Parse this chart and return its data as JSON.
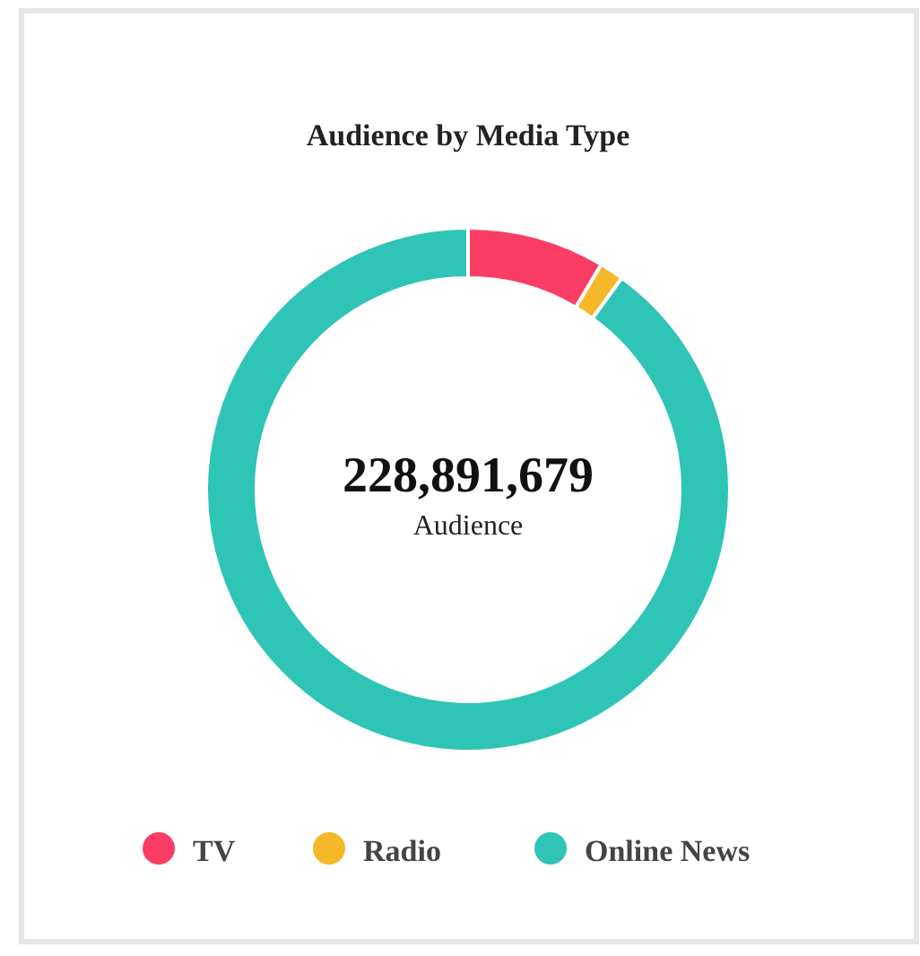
{
  "chart_data": {
    "type": "donut",
    "title": "Audience by Media Type",
    "categories": [
      "TV",
      "Radio",
      "Online News"
    ],
    "values": [
      8.5,
      1.5,
      90
    ],
    "colors": [
      "#fb3c64",
      "#f4b829",
      "#2ec4b6"
    ],
    "annotations": [
      "228,891,679",
      "Audience"
    ],
    "legend": "bottom"
  }
}
